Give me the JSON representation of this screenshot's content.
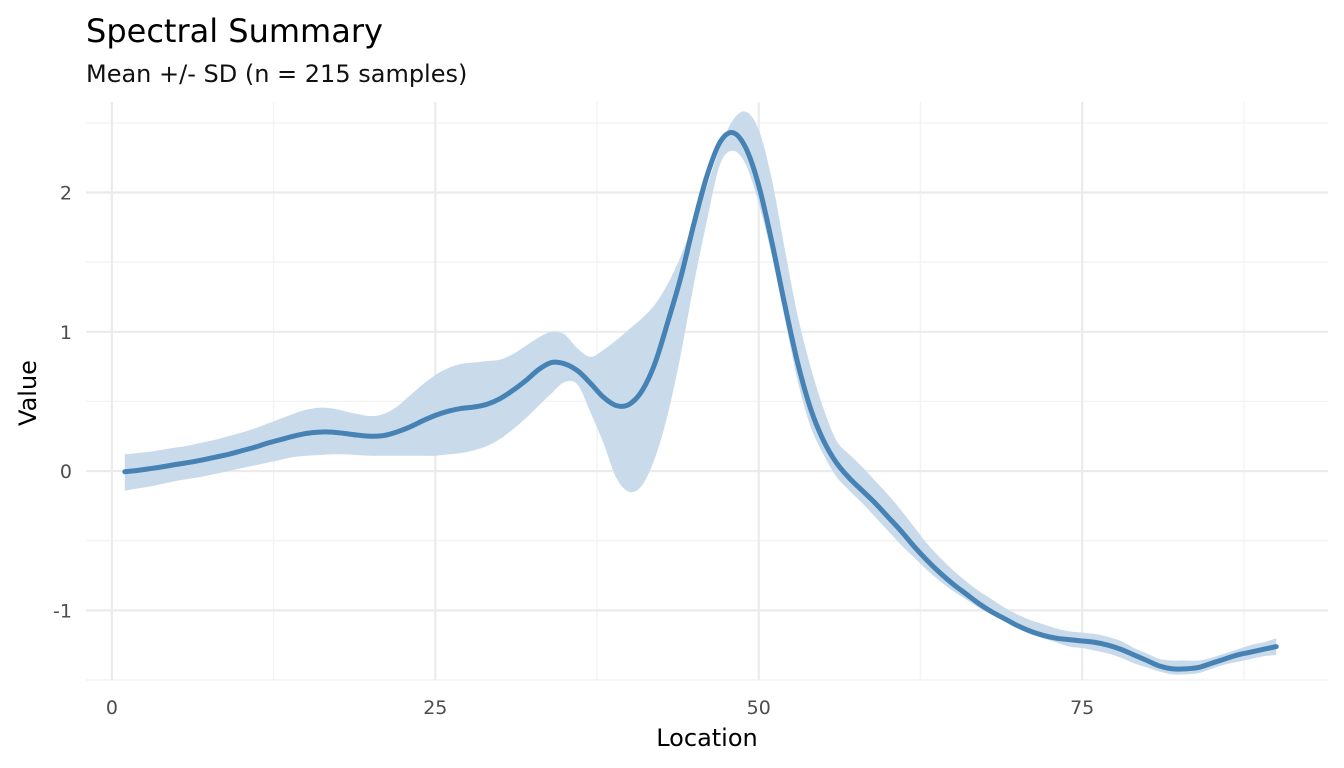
{
  "chart_data": {
    "type": "line",
    "title": "Spectral Summary",
    "subtitle": "Mean +/- SD (n = 215 samples)",
    "xlabel": "Location",
    "ylabel": "Value",
    "xlim": [
      -2,
      94
    ],
    "ylim": [
      -1.5,
      2.65
    ],
    "x_ticks": [
      {
        "value": 0,
        "label": "0"
      },
      {
        "value": 25,
        "label": "25"
      },
      {
        "value": 50,
        "label": "50"
      },
      {
        "value": 75,
        "label": "75"
      }
    ],
    "y_ticks": [
      {
        "value": -1,
        "label": "-1"
      },
      {
        "value": 0,
        "label": "0"
      },
      {
        "value": 1,
        "label": "1"
      },
      {
        "value": 2,
        "label": "2"
      }
    ],
    "grid": true,
    "colors": {
      "line": "#4682b4",
      "band": "#c8daea"
    },
    "series": [
      {
        "x": [
          1,
          2,
          3,
          4,
          5,
          6,
          7,
          8,
          9,
          10,
          11,
          12,
          13,
          14,
          15,
          16,
          17,
          18,
          19,
          20,
          21,
          22,
          23,
          24,
          25,
          26,
          27,
          28,
          29,
          30,
          31,
          32,
          33,
          34,
          35,
          36,
          37,
          38,
          39,
          40,
          41,
          42,
          43,
          44,
          45,
          46,
          47,
          48,
          49,
          50,
          51,
          52,
          53,
          54,
          55,
          56,
          57,
          58,
          59,
          60,
          61,
          62,
          63,
          64,
          65,
          66,
          67,
          68,
          69,
          70,
          71,
          72,
          73,
          74,
          75,
          76,
          77,
          78,
          79,
          80,
          81,
          82,
          83,
          84,
          85,
          86,
          87,
          88,
          89,
          90
        ],
        "mean": [
          -0.005,
          0.005,
          0.018,
          0.032,
          0.048,
          0.063,
          0.08,
          0.1,
          0.12,
          0.145,
          0.17,
          0.2,
          0.225,
          0.25,
          0.27,
          0.28,
          0.28,
          0.27,
          0.258,
          0.25,
          0.255,
          0.28,
          0.315,
          0.36,
          0.4,
          0.43,
          0.45,
          0.46,
          0.48,
          0.52,
          0.58,
          0.65,
          0.73,
          0.78,
          0.77,
          0.72,
          0.63,
          0.53,
          0.47,
          0.48,
          0.58,
          0.78,
          1.08,
          1.4,
          1.78,
          2.12,
          2.36,
          2.43,
          2.32,
          2.05,
          1.65,
          1.2,
          0.78,
          0.45,
          0.22,
          0.06,
          -0.05,
          -0.14,
          -0.23,
          -0.33,
          -0.43,
          -0.54,
          -0.64,
          -0.73,
          -0.81,
          -0.88,
          -0.95,
          -1.01,
          -1.06,
          -1.11,
          -1.15,
          -1.18,
          -1.2,
          -1.21,
          -1.22,
          -1.23,
          -1.25,
          -1.28,
          -1.32,
          -1.36,
          -1.4,
          -1.42,
          -1.42,
          -1.41,
          -1.38,
          -1.35,
          -1.32,
          -1.3,
          -1.28,
          -1.26
        ],
        "upper": [
          0.12,
          0.13,
          0.14,
          0.155,
          0.17,
          0.185,
          0.205,
          0.225,
          0.25,
          0.275,
          0.305,
          0.34,
          0.375,
          0.41,
          0.44,
          0.455,
          0.45,
          0.43,
          0.41,
          0.395,
          0.41,
          0.46,
          0.54,
          0.62,
          0.69,
          0.74,
          0.77,
          0.78,
          0.79,
          0.8,
          0.84,
          0.9,
          0.96,
          1.0,
          0.98,
          0.88,
          0.82,
          0.87,
          0.94,
          1.02,
          1.1,
          1.2,
          1.35,
          1.55,
          1.8,
          2.05,
          2.32,
          2.52,
          2.58,
          2.45,
          2.1,
          1.6,
          1.12,
          0.75,
          0.45,
          0.22,
          0.12,
          0.03,
          -0.07,
          -0.17,
          -0.28,
          -0.4,
          -0.52,
          -0.62,
          -0.71,
          -0.79,
          -0.86,
          -0.92,
          -0.98,
          -1.03,
          -1.07,
          -1.1,
          -1.13,
          -1.15,
          -1.16,
          -1.17,
          -1.19,
          -1.22,
          -1.27,
          -1.31,
          -1.35,
          -1.36,
          -1.36,
          -1.36,
          -1.34,
          -1.31,
          -1.28,
          -1.25,
          -1.23,
          -1.2
        ],
        "lower": [
          -0.14,
          -0.125,
          -0.11,
          -0.09,
          -0.07,
          -0.055,
          -0.04,
          -0.02,
          0.0,
          0.02,
          0.04,
          0.06,
          0.08,
          0.1,
          0.11,
          0.115,
          0.12,
          0.12,
          0.115,
          0.11,
          0.11,
          0.11,
          0.11,
          0.11,
          0.11,
          0.12,
          0.13,
          0.15,
          0.18,
          0.23,
          0.3,
          0.38,
          0.47,
          0.56,
          0.64,
          0.62,
          0.42,
          0.2,
          -0.05,
          -0.15,
          -0.1,
          0.1,
          0.42,
          0.85,
          1.35,
          1.8,
          2.2,
          2.3,
          2.2,
          1.92,
          1.55,
          1.1,
          0.65,
          0.32,
          0.12,
          -0.04,
          -0.14,
          -0.23,
          -0.33,
          -0.43,
          -0.53,
          -0.62,
          -0.71,
          -0.79,
          -0.86,
          -0.92,
          -0.98,
          -1.03,
          -1.08,
          -1.12,
          -1.16,
          -1.2,
          -1.23,
          -1.26,
          -1.27,
          -1.29,
          -1.31,
          -1.34,
          -1.38,
          -1.41,
          -1.44,
          -1.46,
          -1.46,
          -1.45,
          -1.42,
          -1.39,
          -1.37,
          -1.35,
          -1.33,
          -1.32
        ]
      }
    ]
  }
}
